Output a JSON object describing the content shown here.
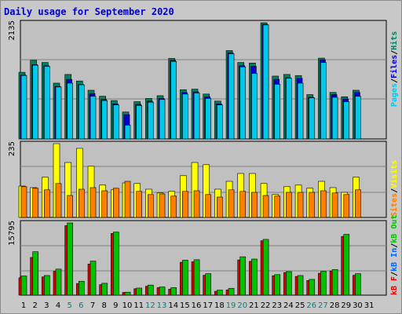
{
  "title": "Daily usage for September 2020",
  "colors": {
    "pages": "#00c8e8",
    "files": "#0000d0",
    "hits": "#008060",
    "visits": "#ffff00",
    "sites": "#ff8000",
    "kb_in": "#0060ff",
    "kb_out": "#00c000",
    "kb_f": "#e00000",
    "weekend_day": "#008080",
    "weekday_day": "#000000",
    "panel": "#c0c0c0",
    "grid": "#808080"
  },
  "legend": {
    "hits_files_pages": [
      "Pages",
      "/",
      "Files",
      "/",
      "Hits"
    ],
    "visits_sites": [
      "Sites",
      "/",
      "Visits"
    ],
    "kb": [
      "kB F",
      "/",
      "kB In",
      "/",
      "kB Out"
    ]
  },
  "chart_data": [
    {
      "type": "bar",
      "name": "hits-files-pages",
      "ymax_label": "2135",
      "ylim": [
        0,
        2135
      ],
      "categories": [
        "1",
        "2",
        "3",
        "4",
        "5",
        "6",
        "7",
        "8",
        "9",
        "10",
        "11",
        "12",
        "13",
        "14",
        "15",
        "16",
        "17",
        "18",
        "19",
        "20",
        "21",
        "22",
        "23",
        "24",
        "25",
        "26",
        "27",
        "28",
        "29",
        "30",
        "31"
      ],
      "series": [
        {
          "name": "Hits",
          "values": [
            1225,
            1445,
            1405,
            1025,
            1185,
            1065,
            895,
            785,
            705,
            495,
            685,
            745,
            795,
            1480,
            905,
            915,
            825,
            695,
            1625,
            1405,
            1395,
            2135,
            1155,
            1185,
            1165,
            815,
            1485,
            855,
            775,
            895,
            1
          ]
        },
        {
          "name": "Files",
          "values": [
            1175,
            1365,
            1345,
            965,
            1095,
            1005,
            835,
            725,
            645,
            445,
            635,
            695,
            745,
            1445,
            855,
            865,
            775,
            645,
            1585,
            1345,
            1335,
            2105,
            1095,
            1125,
            1115,
            765,
            1455,
            815,
            735,
            855,
            1
          ]
        },
        {
          "name": "Pages",
          "values": [
            1165,
            1355,
            1335,
            955,
            1025,
            995,
            785,
            705,
            625,
            255,
            615,
            675,
            725,
            1425,
            825,
            845,
            745,
            625,
            1565,
            1325,
            1205,
            2095,
            1005,
            1115,
            1025,
            755,
            1405,
            765,
            685,
            785,
            1
          ]
        }
      ]
    },
    {
      "type": "bar",
      "name": "visits-sites",
      "ymax_label": "235",
      "ylim": [
        0,
        235
      ],
      "categories": [
        "1",
        "2",
        "3",
        "4",
        "5",
        "6",
        "7",
        "8",
        "9",
        "10",
        "11",
        "12",
        "13",
        "14",
        "15",
        "16",
        "17",
        "18",
        "19",
        "20",
        "21",
        "22",
        "23",
        "24",
        "25",
        "26",
        "27",
        "28",
        "29",
        "30",
        "31"
      ],
      "series": [
        {
          "name": "Visits",
          "values": [
            100,
            95,
            128,
            235,
            175,
            220,
            163,
            103,
            88,
            110,
            108,
            90,
            78,
            83,
            133,
            175,
            168,
            90,
            115,
            140,
            140,
            108,
            73,
            98,
            103,
            93,
            115,
            95,
            80,
            128,
            1
          ]
        },
        {
          "name": "Sites",
          "values": [
            98,
            93,
            88,
            108,
            70,
            90,
            95,
            85,
            93,
            115,
            83,
            73,
            75,
            68,
            83,
            85,
            73,
            65,
            88,
            83,
            80,
            70,
            68,
            80,
            80,
            80,
            85,
            78,
            73,
            88,
            1
          ]
        }
      ]
    },
    {
      "type": "bar",
      "name": "kb",
      "ymax_label": "15795",
      "ylim": [
        0,
        15795
      ],
      "categories": [
        "1",
        "2",
        "3",
        "4",
        "5",
        "6",
        "7",
        "8",
        "9",
        "10",
        "11",
        "12",
        "13",
        "14",
        "15",
        "16",
        "17",
        "18",
        "19",
        "20",
        "21",
        "22",
        "23",
        "24",
        "25",
        "26",
        "27",
        "28",
        "29",
        "30",
        "31"
      ],
      "series": [
        {
          "name": "kB F",
          "values": [
            3800,
            8250,
            4000,
            5200,
            15200,
            2550,
            6800,
            2300,
            13500,
            600,
            1400,
            1950,
            1650,
            1300,
            7200,
            7300,
            4350,
            850,
            1150,
            7700,
            7400,
            11900,
            4250,
            4950,
            4100,
            3200,
            4800,
            5300,
            12850,
            4350,
            1
          ]
        },
        {
          "name": "kB In",
          "values": [
            0,
            0,
            0,
            0,
            0,
            0,
            0,
            0,
            0,
            0,
            0,
            0,
            0,
            0,
            0,
            0,
            0,
            0,
            0,
            0,
            0,
            0,
            0,
            0,
            0,
            0,
            0,
            0,
            0,
            0,
            0
          ]
        },
        {
          "name": "kB Out",
          "values": [
            4200,
            9500,
            4300,
            5700,
            15795,
            3050,
            7450,
            2600,
            13800,
            650,
            1550,
            2200,
            1800,
            1650,
            7650,
            7750,
            4700,
            1100,
            1500,
            8400,
            7900,
            12200,
            4500,
            5150,
            4300,
            3450,
            5200,
            5600,
            13300,
            4700,
            1
          ]
        }
      ]
    }
  ]
}
